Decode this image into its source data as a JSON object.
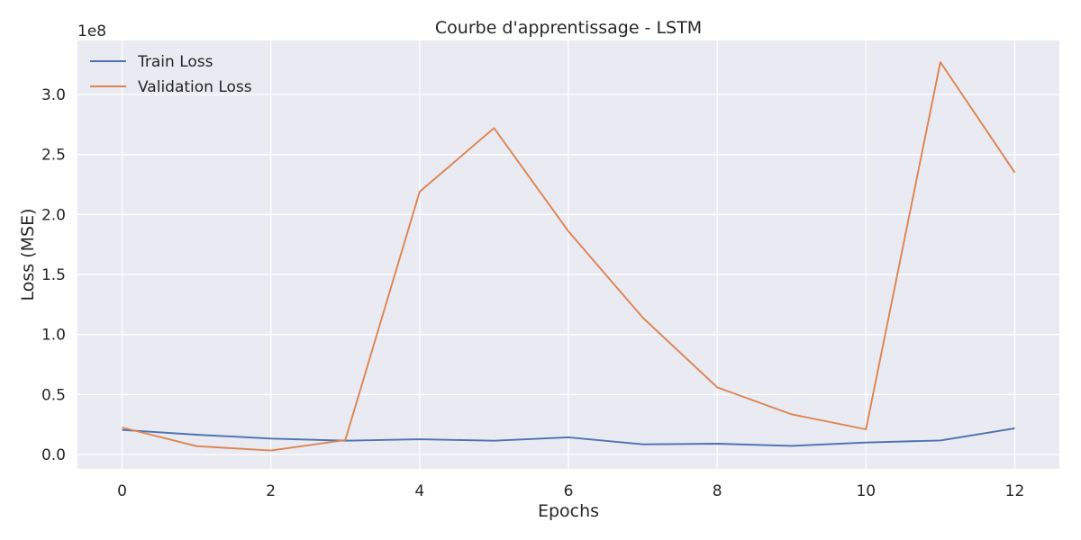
{
  "chart_data": {
    "type": "line",
    "title": "Courbe d'apprentissage - LSTM",
    "xlabel": "Epochs",
    "ylabel": "Loss (MSE)",
    "y_offset_label": "1e8",
    "x": [
      0,
      1,
      2,
      3,
      4,
      5,
      6,
      7,
      8,
      9,
      10,
      11,
      12
    ],
    "xlim": [
      -0.6,
      12.6
    ],
    "ylim": [
      -0.12,
      3.45
    ],
    "xticks": [
      0,
      2,
      4,
      6,
      8,
      10,
      12
    ],
    "yticks": [
      0.0,
      0.5,
      1.0,
      1.5,
      2.0,
      2.5,
      3.0
    ],
    "ytick_labels": [
      "0.0",
      "0.5",
      "1.0",
      "1.5",
      "2.0",
      "2.5",
      "3.0"
    ],
    "grid": true,
    "legend_position": "top-left",
    "series": [
      {
        "name": "Train Loss",
        "color": "#4c72b0",
        "values": [
          0.205,
          0.165,
          0.133,
          0.115,
          0.127,
          0.115,
          0.143,
          0.085,
          0.09,
          0.072,
          0.1,
          0.117,
          0.218
        ]
      },
      {
        "name": "Validation Loss",
        "color": "#dd8452",
        "values": [
          0.225,
          0.07,
          0.033,
          0.12,
          2.19,
          2.72,
          1.86,
          1.14,
          0.56,
          0.335,
          0.21,
          3.27,
          2.35
        ]
      }
    ]
  },
  "colors": {
    "plot_background": "#eaeaf2",
    "grid": "#ffffff",
    "text": "#262626"
  }
}
